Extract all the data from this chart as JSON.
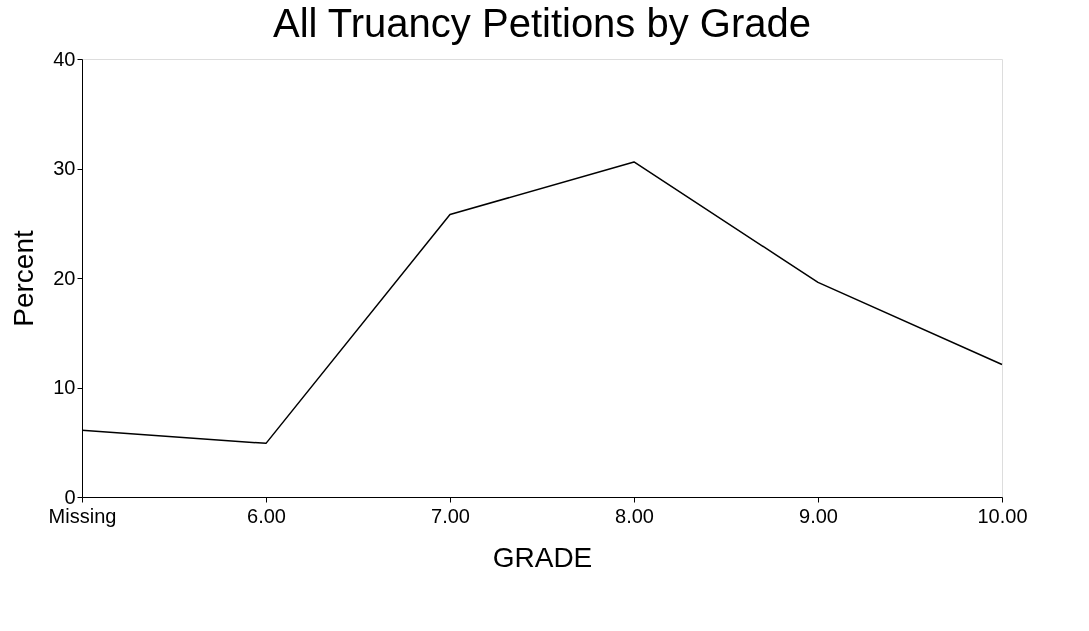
{
  "chart_data": {
    "type": "line",
    "title": "All Truancy Petitions by Grade",
    "xlabel": "GRADE",
    "ylabel": "Percent",
    "categories": [
      "Missing",
      "6.00",
      "7.00",
      "8.00",
      "9.00",
      "10.00"
    ],
    "series": [
      {
        "color": "#000000",
        "values": [
          6.1,
          4.9,
          25.8,
          30.6,
          19.6,
          12.1
        ]
      }
    ],
    "ylim": [
      0,
      40
    ],
    "yticks": [
      0,
      10,
      20,
      30,
      40
    ],
    "grid": false,
    "legend": false,
    "marker": "none",
    "line_style": "solid"
  }
}
